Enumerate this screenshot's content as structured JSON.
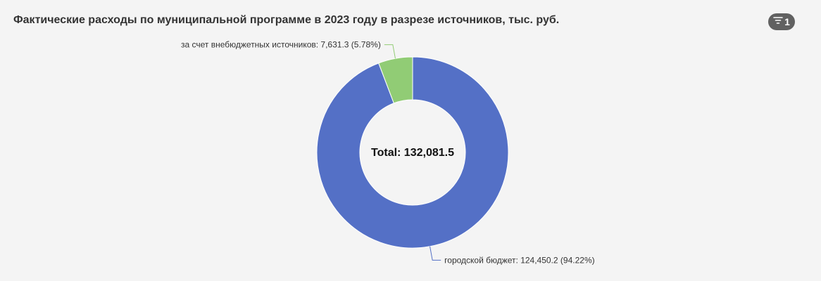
{
  "title": "Фактические расходы по муниципальной программе в 2023 году в разрезе источников, тыс. руб.",
  "filter": {
    "icon": "filter-icon",
    "count": "1",
    "badge_color": "#616161"
  },
  "chart_data": {
    "type": "pie",
    "donut": true,
    "title": "Фактические расходы по муниципальной программе в 2023 году в разрезе источников, тыс. руб.",
    "total_label": "Total: 132,081.5",
    "total": 132081.5,
    "slices": [
      {
        "name": "городской бюджет",
        "value": 124450.2,
        "percent": 94.22,
        "color": "#5470c6",
        "label": "городской бюджет: 124,450.2 (94.22%)"
      },
      {
        "name": "за счет внебюджетных источников",
        "value": 7631.3,
        "percent": 5.78,
        "color": "#91cc75",
        "label": "за счет внебюджетных источников: 7,631.3 (5.78%)"
      }
    ]
  }
}
